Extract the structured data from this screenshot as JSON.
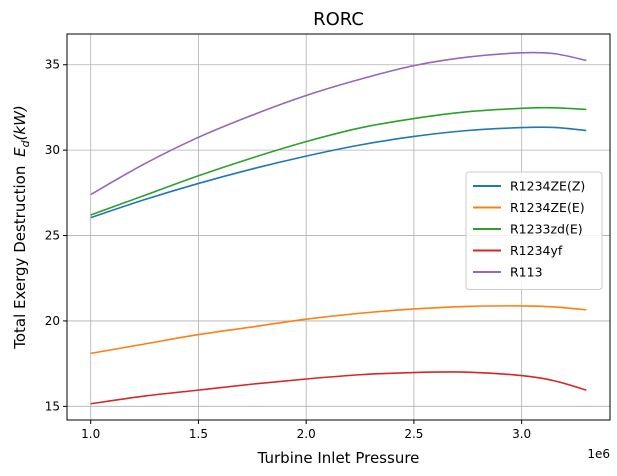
{
  "chart_data": {
    "type": "line",
    "title": "RORC",
    "xlabel": "Turbine Inlet Pressure",
    "ylabel": "Total Exergy Destruction E_d(kW)",
    "ylabel_prefix": "Total Exergy Destruction",
    "ylabel_symbol": "E",
    "ylabel_subscript": "d",
    "ylabel_units": "(kW)",
    "x_offset_label": "1e6",
    "xlim": [
      0.89,
      3.41
    ],
    "ylim": [
      14.2,
      36.8
    ],
    "x_ticks": [
      1.0,
      1.5,
      2.0,
      2.5,
      3.0
    ],
    "x_tick_labels": [
      "1.0",
      "1.5",
      "2.0",
      "2.5",
      "3.0"
    ],
    "y_ticks": [
      15,
      20,
      25,
      30,
      35
    ],
    "y_tick_labels": [
      "15",
      "20",
      "25",
      "30",
      "35"
    ],
    "grid": true,
    "legend_position": "center-right",
    "x": [
      1.0,
      1.25,
      1.5,
      1.75,
      2.0,
      2.25,
      2.5,
      2.75,
      3.0,
      3.15,
      3.3
    ],
    "series": [
      {
        "name": "R1234ZE(Z)",
        "color": "#1f77b4",
        "values": [
          26.05,
          27.1,
          28.05,
          28.9,
          29.65,
          30.3,
          30.8,
          31.15,
          31.32,
          31.33,
          31.15
        ]
      },
      {
        "name": "R1234ZE(E)",
        "color": "#ff7f0e",
        "values": [
          18.1,
          18.65,
          19.2,
          19.65,
          20.1,
          20.45,
          20.7,
          20.85,
          20.88,
          20.82,
          20.65
        ]
      },
      {
        "name": "R1233zd(E)",
        "color": "#2ca02c",
        "values": [
          26.2,
          27.35,
          28.5,
          29.55,
          30.5,
          31.3,
          31.85,
          32.25,
          32.45,
          32.48,
          32.38
        ]
      },
      {
        "name": "R1234yf",
        "color": "#d62728",
        "values": [
          15.15,
          15.6,
          15.95,
          16.3,
          16.6,
          16.85,
          16.98,
          17.0,
          16.8,
          16.5,
          15.95
        ]
      },
      {
        "name": "R113",
        "color": "#9467bd",
        "values": [
          27.4,
          29.2,
          30.75,
          32.05,
          33.2,
          34.15,
          34.95,
          35.45,
          35.7,
          35.65,
          35.25
        ]
      }
    ]
  }
}
